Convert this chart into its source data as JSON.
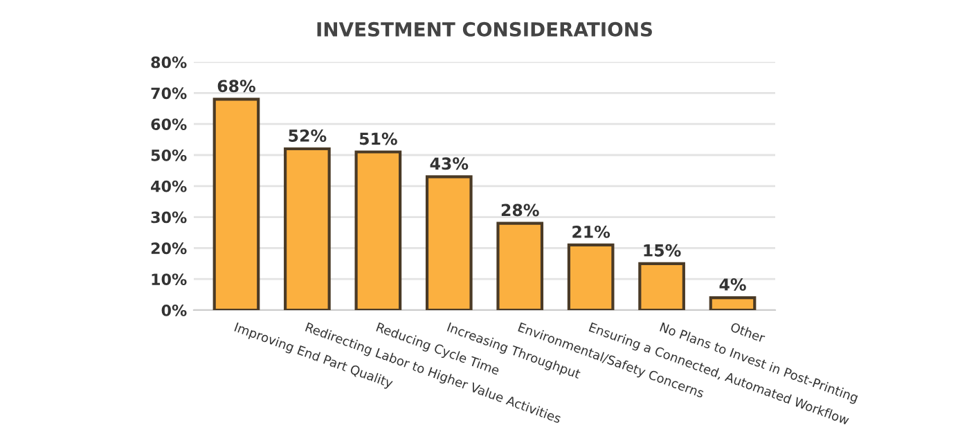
{
  "chart_data": {
    "type": "bar",
    "title": "INVESTMENT CONSIDERATIONS",
    "categories": [
      "Improving End Part Quality",
      "Redirecting Labor to Higher Value Activities",
      "Reducing Cycle Time",
      "Increasing Throughput",
      "Environmental/Safety Concerns",
      "Ensuring a Connected, Automated Workflow",
      "No Plans to Invest in Post-Printing",
      "Other"
    ],
    "values": [
      68,
      52,
      51,
      43,
      28,
      21,
      15,
      4
    ],
    "value_labels": [
      "68%",
      "52%",
      "51%",
      "43%",
      "28%",
      "21%",
      "15%",
      "4%"
    ],
    "color": "#fbb040",
    "ylim": [
      0,
      80
    ],
    "yticks": [
      {
        "value": 0,
        "label": "0%"
      },
      {
        "value": 10,
        "label": "10%"
      },
      {
        "value": 20,
        "label": "20%"
      },
      {
        "value": 30,
        "label": "30%"
      },
      {
        "value": 40,
        "label": "40%"
      },
      {
        "value": 50,
        "label": "50%"
      },
      {
        "value": 60,
        "label": "60%"
      },
      {
        "value": 70,
        "label": "70%"
      },
      {
        "value": 80,
        "label": "80%"
      }
    ],
    "grid": "y"
  }
}
